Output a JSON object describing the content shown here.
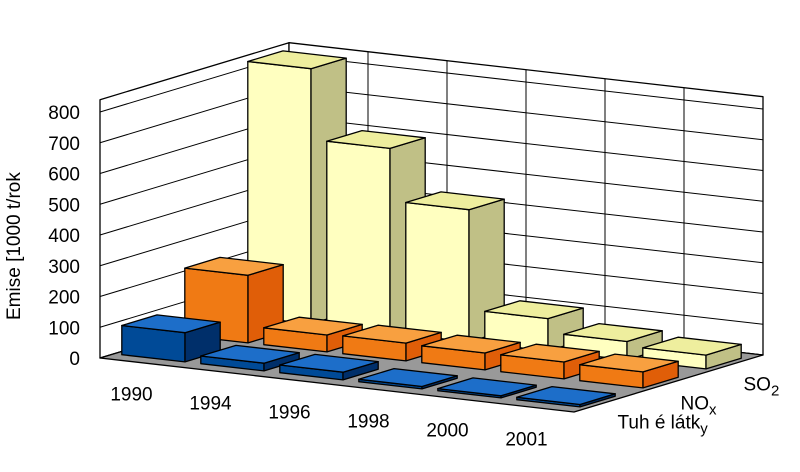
{
  "chart_data": {
    "type": "bar",
    "title": "",
    "xlabel": "",
    "ylabel": "Emise [1000 t/rok",
    "ylim": [
      0,
      800
    ],
    "yticks": [
      0,
      100,
      200,
      300,
      400,
      500,
      600,
      700,
      800
    ],
    "grid": true,
    "categories": [
      "1990",
      "1994",
      "1996",
      "1998",
      "2000",
      "2001"
    ],
    "series": [
      {
        "name": "Tuhé látky",
        "label_main": "Tuh é látk",
        "label_sub": "y",
        "colors": {
          "front": "#004a97",
          "side": "#002f6a",
          "top": "#1d6ec9"
        },
        "values": [
          95,
          25,
          25,
          8,
          7,
          8
        ]
      },
      {
        "name": "NOx",
        "label_main": "NO",
        "label_sub": "x",
        "colors": {
          "front": "#f07a14",
          "side": "#e05e08",
          "top": "#f8a040"
        },
        "values": [
          220,
          55,
          58,
          55,
          55,
          52
        ]
      },
      {
        "name": "SO2",
        "label_main": "SO",
        "label_sub": "2",
        "colors": {
          "front": "#ffffc0",
          "side": "#c0c086",
          "top": "#eeee9e"
        },
        "values": [
          830,
          600,
          430,
          105,
          60,
          45
        ]
      }
    ]
  }
}
